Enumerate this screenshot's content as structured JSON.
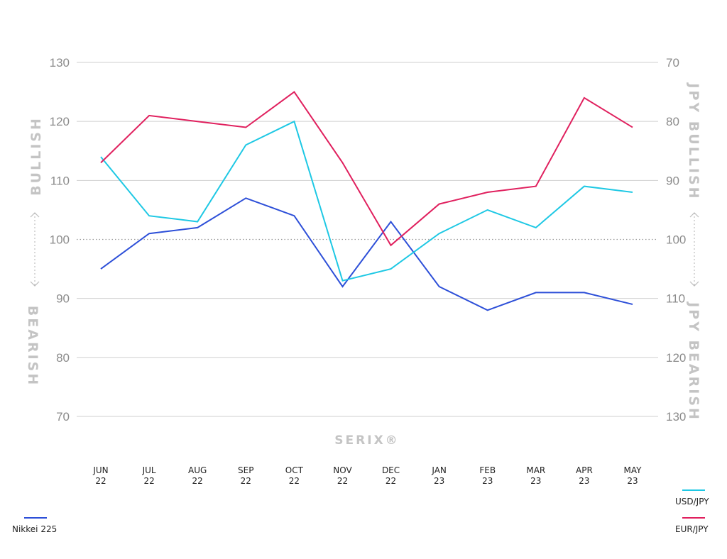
{
  "chart_data": {
    "type": "line",
    "categories": [
      "JUN 22",
      "JUL 22",
      "AUG 22",
      "SEP 22",
      "OCT 22",
      "NOV 22",
      "DEC 22",
      "JAN 23",
      "FEB 23",
      "MAR 23",
      "APR 23",
      "MAY 23"
    ],
    "category_labels": [
      [
        "JUN",
        "22"
      ],
      [
        "JUL",
        "22"
      ],
      [
        "AUG",
        "22"
      ],
      [
        "SEP",
        "22"
      ],
      [
        "OCT",
        "22"
      ],
      [
        "NOV",
        "22"
      ],
      [
        "DEC",
        "22"
      ],
      [
        "JAN",
        "23"
      ],
      [
        "FEB",
        "23"
      ],
      [
        "MAR",
        "23"
      ],
      [
        "APR",
        "23"
      ],
      [
        "MAY",
        "23"
      ]
    ],
    "y_left": {
      "ylim": [
        70,
        130
      ],
      "ticks": [
        "130",
        "120",
        "110",
        "100",
        "90",
        "80",
        "70"
      ]
    },
    "y_right": {
      "ylim": [
        70,
        130
      ],
      "inverted": true,
      "ticks": [
        "70",
        "80",
        "90",
        "100",
        "110",
        "120",
        "130"
      ]
    },
    "reference_line": 100,
    "series": [
      {
        "name": "Nikkei 225",
        "color": "#2d4fd8",
        "values": [
          95,
          101,
          102,
          107,
          104,
          92,
          103,
          92,
          88,
          91,
          91,
          89
        ]
      },
      {
        "name": "USD/JPY",
        "color": "#1ec8e4",
        "values": [
          114,
          104,
          103,
          116,
          120,
          93,
          95,
          101,
          105,
          102,
          109,
          108
        ]
      },
      {
        "name": "EUR/JPY",
        "color": "#e0205e",
        "values": [
          113,
          121,
          120,
          119,
          125,
          113,
          99,
          106,
          108,
          109,
          124,
          119
        ]
      }
    ],
    "side_labels": {
      "left_top": "BULLISH",
      "left_bottom": "BEARISH",
      "right_top": "JPY BULLISH",
      "right_bottom": "JPY BEARISH"
    },
    "brand": "SERIX®",
    "grid": true,
    "legend": {
      "left": [
        "Nikkei 225"
      ],
      "right": [
        "USD/JPY",
        "EUR/JPY"
      ]
    }
  }
}
